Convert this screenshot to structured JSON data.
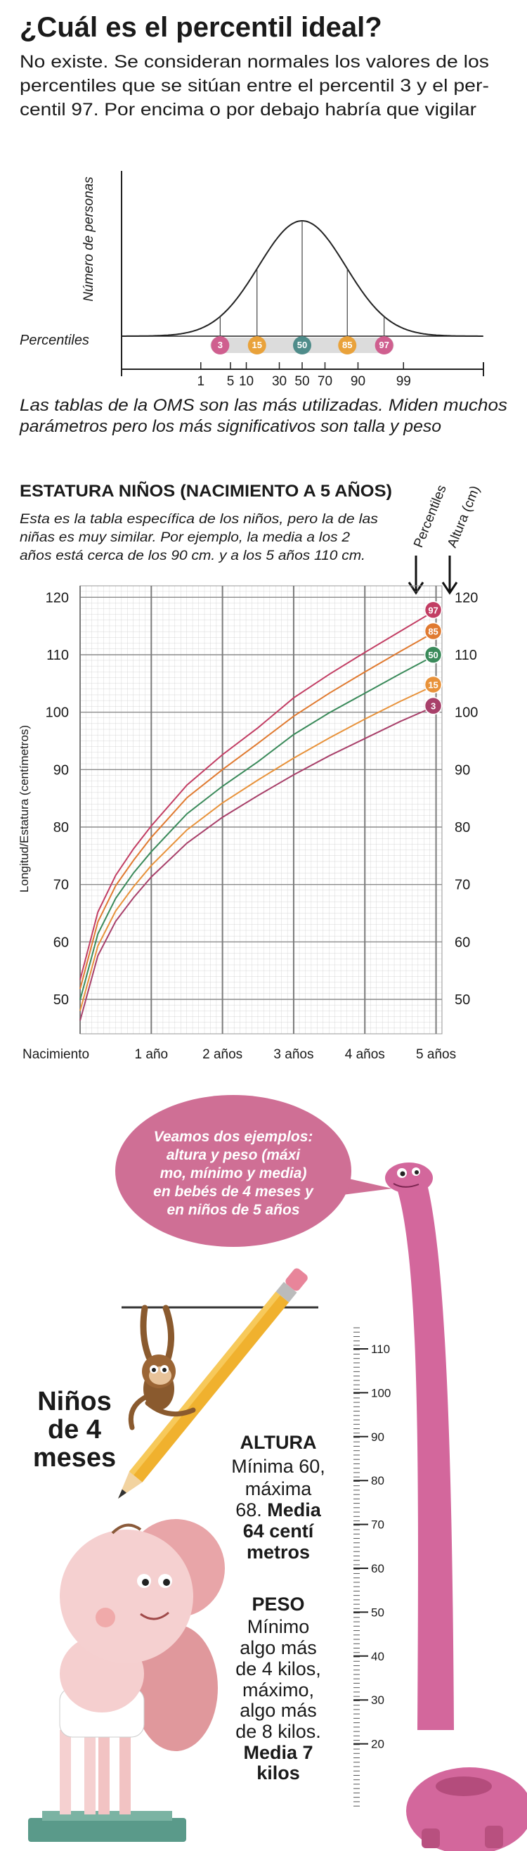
{
  "header": {
    "title": "¿Cuál es el percentil ideal?",
    "subtitle_lines": [
      "No existe. Se consideran normales los valores de los",
      "percentiles que se sitúan entre el percentil 3 y el per-",
      "centil 97. Por encima o por debajo habría que vigilar"
    ]
  },
  "chart_data": [
    {
      "type": "bell",
      "y_label": "Número de personas",
      "band_label": "Percentiles",
      "markers": [
        {
          "value": 3,
          "color": "#cf5f8f"
        },
        {
          "value": 15,
          "color": "#e9a23b"
        },
        {
          "value": 50,
          "color": "#4f8c8a"
        },
        {
          "value": 85,
          "color": "#e9a23b"
        },
        {
          "value": 97,
          "color": "#cf5f8f"
        }
      ],
      "xticks": [
        1,
        5,
        10,
        30,
        50,
        70,
        90,
        99
      ],
      "caption_lines": [
        "Las tablas de la OMS son las más utilizadas. Miden muchos",
        "parámetros pero los más significativos son talla y peso"
      ]
    },
    {
      "type": "line",
      "title": "ESTATURA NIÑOS (NACIMIENTO A 5 AÑOS)",
      "description_lines": [
        "Esta es la tabla específica de los niños, pero la de las",
        "niñas es muy similar. Por ejemplo, la media a los 2",
        "años está cerca de los 90 cm. y a los 5 años 110 cm."
      ],
      "series_header": [
        "Percentiles",
        "Altura (cm)"
      ],
      "y_label": "Longitud/Estatura (centímetros)",
      "x": [
        0,
        3,
        6,
        9,
        12,
        18,
        24,
        30,
        36,
        42,
        48,
        54,
        60
      ],
      "xlim": [
        0,
        61
      ],
      "xticks": [
        {
          "value": 0,
          "label": "Nacimiento"
        },
        {
          "value": 12,
          "label": "1 año"
        },
        {
          "value": 24,
          "label": "2 años"
        },
        {
          "value": 36,
          "label": "3 años"
        },
        {
          "value": 48,
          "label": "4 años"
        },
        {
          "value": 60,
          "label": "5 años"
        }
      ],
      "ylim": [
        44,
        122
      ],
      "yticks": [
        50,
        60,
        70,
        80,
        90,
        100,
        110,
        120
      ],
      "grid": true,
      "series": [
        {
          "name": "97",
          "color": "#c23d63",
          "values": [
            53.4,
            65.2,
            71.6,
            76.2,
            80.2,
            87.3,
            92.6,
            97.3,
            102.5,
            106.6,
            110.4,
            114.1,
            117.8
          ]
        },
        {
          "name": "85",
          "color": "#e07a30",
          "values": [
            51.8,
            63.5,
            69.8,
            74.2,
            78.2,
            85.1,
            90.0,
            94.6,
            99.3,
            103.3,
            107.0,
            110.6,
            114.1
          ]
        },
        {
          "name": "50",
          "color": "#3a8a5a",
          "values": [
            49.9,
            61.4,
            67.6,
            72.0,
            75.7,
            82.3,
            87.1,
            91.4,
            96.1,
            99.9,
            103.3,
            106.7,
            110.0
          ]
        },
        {
          "name": "15",
          "color": "#e8923a",
          "values": [
            48.0,
            59.3,
            65.4,
            69.6,
            73.3,
            79.5,
            84.2,
            88.2,
            92.0,
            95.5,
            98.8,
            101.9,
            104.8
          ]
        },
        {
          "name": "3",
          "color": "#a8406a",
          "values": [
            46.3,
            57.6,
            63.6,
            67.7,
            71.3,
            77.2,
            81.7,
            85.5,
            89.1,
            92.4,
            95.4,
            98.4,
            101.1
          ]
        }
      ]
    }
  ],
  "illustration": {
    "bubble_lines": [
      "Veamos dos ejemplos:",
      "altura y peso (máxi",
      "mo, mínimo y media)",
      "en bebés de 4 meses y",
      "en niños de 5 años"
    ],
    "heading_lines": [
      "Niños",
      "de 4",
      "meses"
    ],
    "altura": {
      "heading": "ALTURA",
      "lines": [
        "Mínima 60,",
        "máxima",
        "68."
      ],
      "emphasis": [
        "Media",
        "64 centí",
        "metros"
      ]
    },
    "peso": {
      "heading": "PESO",
      "lines": [
        "Mínimo",
        "algo más",
        "de 4 kilos,",
        "máximo,",
        "algo más",
        "de 8 kilos."
      ],
      "emphasis": [
        "Media 7",
        "kilos"
      ]
    },
    "ruler_ticks": [
      110,
      100,
      90,
      80,
      70,
      60,
      50,
      40,
      30,
      20
    ]
  }
}
